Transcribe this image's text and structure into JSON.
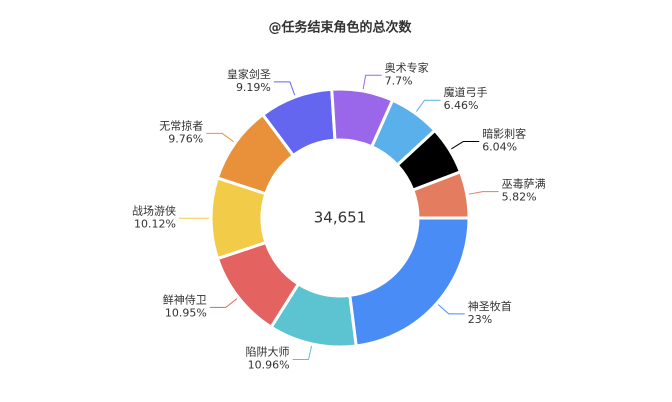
{
  "chart_data": {
    "type": "donut",
    "title": "@任务结束角色的总次数",
    "center_label": "34,651",
    "categories": [
      "神圣牧首",
      "陷阱大师",
      "鲜神侍卫",
      "战场游侠",
      "无常掠者",
      "皇家剑圣",
      "奥术专家",
      "魔道弓手",
      "暗影刺客",
      "巫毒萨满"
    ],
    "values": [
      23,
      10.96,
      10.95,
      10.12,
      9.76,
      9.19,
      7.7,
      6.46,
      6.04,
      5.82
    ],
    "value_labels": [
      "23%",
      "10.96%",
      "10.95%",
      "10.12%",
      "9.76%",
      "9.19%",
      "7.7%",
      "6.46%",
      "6.04%",
      "5.82%"
    ],
    "colors": [
      "#4a8cf6",
      "#5bc4d0",
      "#e4625f",
      "#f2cc48",
      "#e8913a",
      "#6566f0",
      "#9a66ea",
      "#5ab0ea",
      "#000000",
      "#e47d5f"
    ]
  }
}
